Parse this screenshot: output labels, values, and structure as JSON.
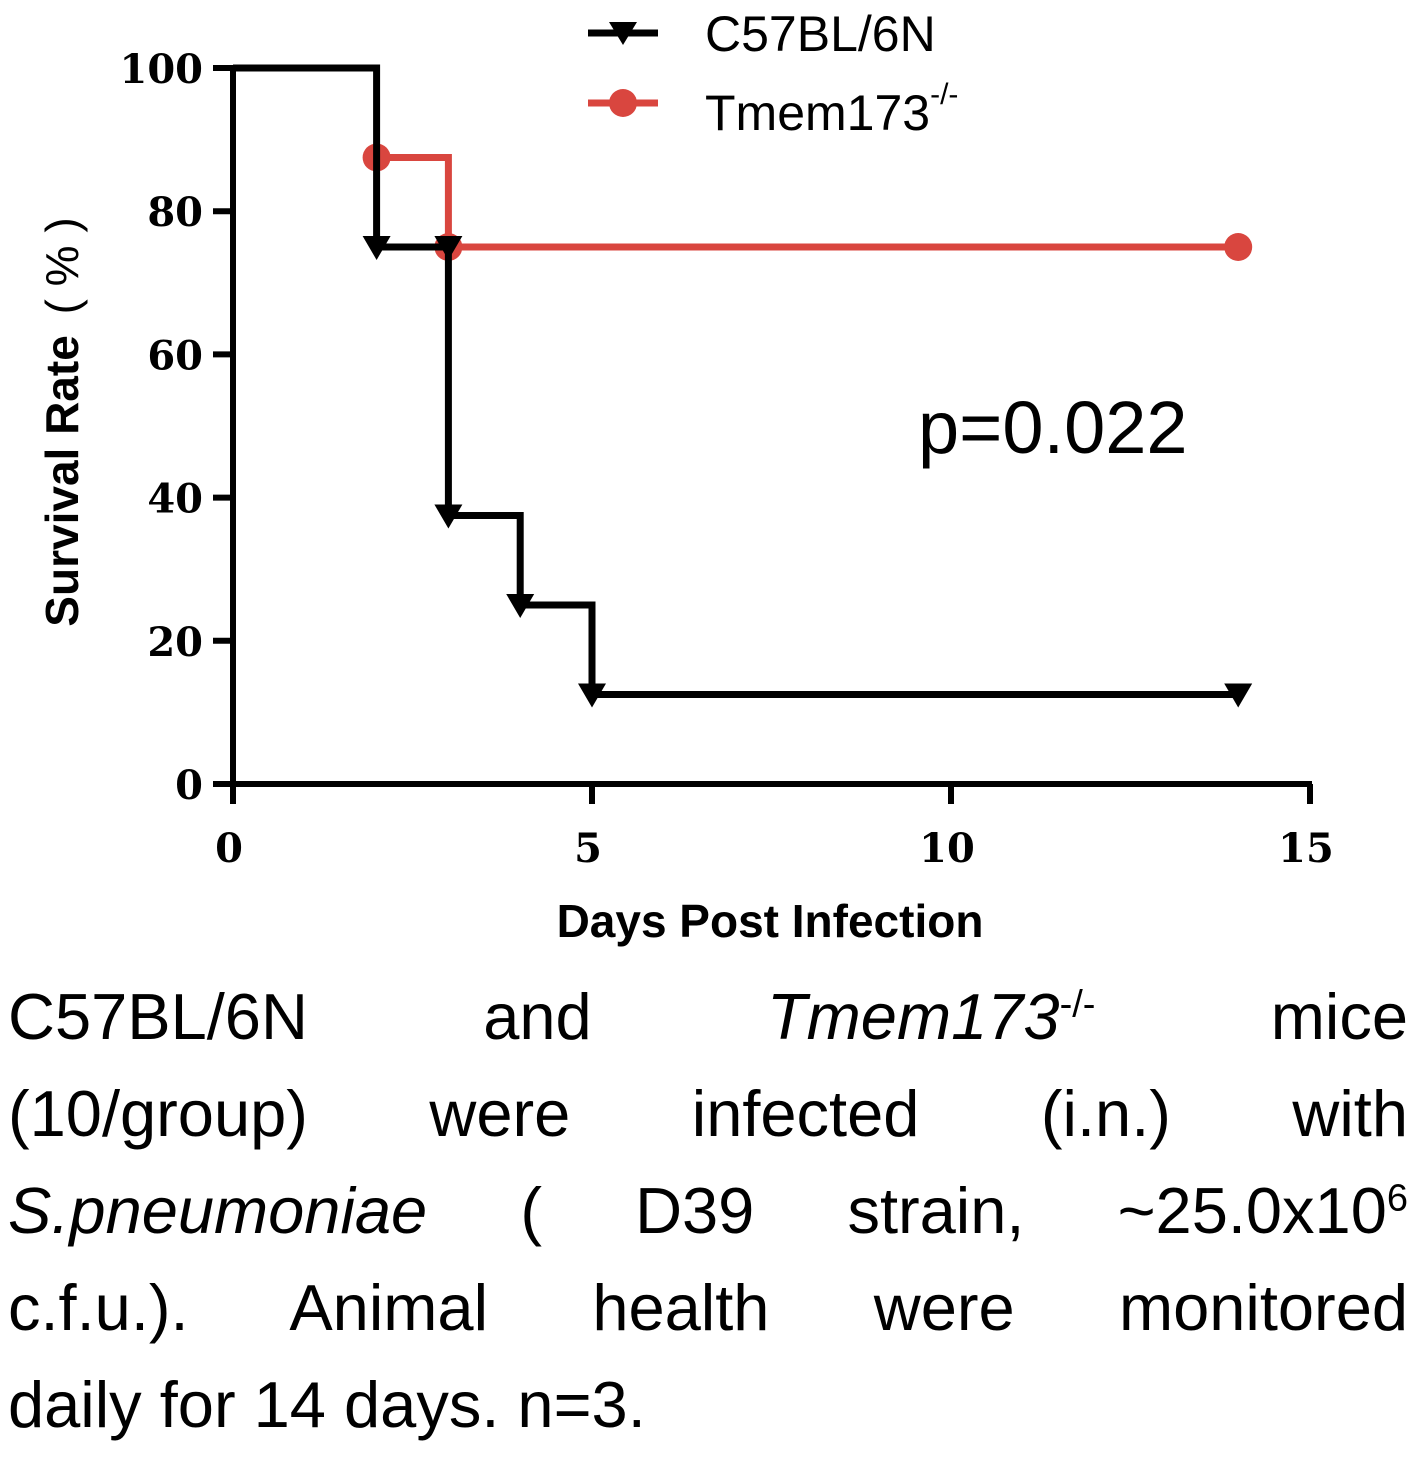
{
  "chart_data": {
    "type": "line",
    "step": true,
    "xlabel": "Days Post Infection",
    "ylabel_main": "Survival Rate",
    "ylabel_unit": "( % )",
    "xlim": [
      0,
      15
    ],
    "ylim": [
      0,
      100
    ],
    "x_ticks": [
      "0",
      "5",
      "10",
      "15"
    ],
    "y_ticks": [
      "0",
      "20",
      "40",
      "60",
      "80",
      "100"
    ],
    "legend_position": "top",
    "series": [
      {
        "name": "C57BL/6N",
        "color": "#000000",
        "marker": "triangle-down",
        "steps": [
          [
            0,
            100
          ],
          [
            2,
            100
          ],
          [
            2,
            75
          ],
          [
            3,
            75
          ],
          [
            3,
            37.5
          ],
          [
            4,
            37.5
          ],
          [
            4,
            25
          ],
          [
            5,
            25
          ],
          [
            5,
            12.5
          ],
          [
            14,
            12.5
          ]
        ],
        "points": [
          [
            2,
            75
          ],
          [
            3,
            75
          ],
          [
            3,
            37.5
          ],
          [
            4,
            25
          ],
          [
            5,
            12.5
          ],
          [
            14,
            12.5
          ]
        ]
      },
      {
        "name": "Tmem173",
        "name_sup": "-/-",
        "color": "#d9463f",
        "marker": "circle",
        "steps": [
          [
            2,
            87.5
          ],
          [
            3,
            87.5
          ],
          [
            3,
            75
          ],
          [
            14,
            75
          ]
        ],
        "points": [
          [
            2,
            87.5
          ],
          [
            3,
            75
          ],
          [
            14,
            75
          ]
        ]
      }
    ],
    "annotation": "p=0.022"
  },
  "caption": {
    "line1": {
      "a": "C57BL/6N",
      "b": "and",
      "c": "Tmem173",
      "c_sup": "-/-",
      "d": "mice"
    },
    "line2": "(10/group) were infected (i.n.) with",
    "line3": {
      "a": "S.pneumoniae",
      "b": " ( D39 strain, ~25.0x10",
      "b_sup": "6"
    },
    "line4": "c.f.u.). Animal health were monitored",
    "line5": "daily for 14 days. n=3."
  }
}
